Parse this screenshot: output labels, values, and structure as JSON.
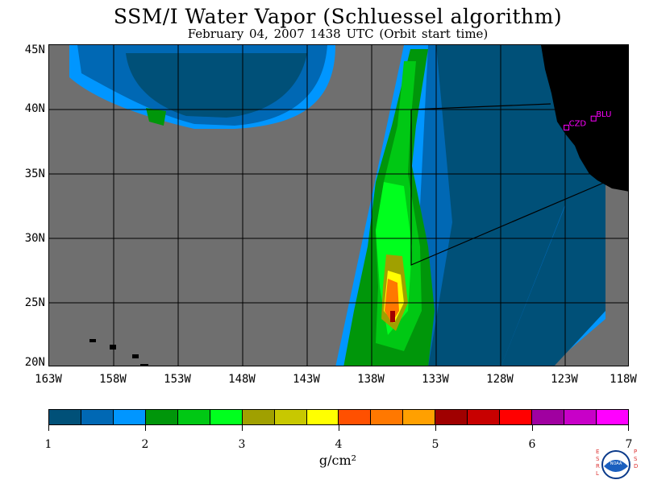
{
  "title": "SSM/I Water Vapor (Schluessel algorithm)",
  "subtitle": "February 04, 2007  1438 UTC  (Orbit start time)",
  "map": {
    "lat_labels": [
      "45N",
      "40N",
      "35N",
      "30N",
      "25N",
      "20N"
    ],
    "lon_labels": [
      "163W",
      "158W",
      "153W",
      "148W",
      "143W",
      "138W",
      "133W",
      "128W",
      "123W",
      "118W"
    ],
    "extent": {
      "lon_min": -163,
      "lon_max": -118,
      "lat_min": 20,
      "lat_max": 45
    },
    "stations": [
      {
        "name": "CZD",
        "lon": -122.9,
        "lat": 38.6
      },
      {
        "name": "BLU",
        "lon": -120.8,
        "lat": 39.3
      }
    ],
    "colors": {
      "no_data": "#6f6f6f",
      "land": "#000000",
      "station": "#ff00ff"
    }
  },
  "colorbar": {
    "colors": [
      "#005078",
      "#0068b4",
      "#0096ff",
      "#00960a",
      "#00c814",
      "#00ff1e",
      "#a0a000",
      "#c8c800",
      "#ffff00",
      "#ff5000",
      "#ff7800",
      "#ffa000",
      "#a00000",
      "#c80000",
      "#ff0000",
      "#a000a0",
      "#c800c8",
      "#ff00ff"
    ],
    "labels": [
      "1",
      "2",
      "3",
      "4",
      "5",
      "6",
      "7"
    ],
    "units": "g/cm²"
  },
  "logo": {
    "name": "noaa-logo",
    "text": "NOAA",
    "left_text": "ESRL",
    "right_text": "PSD"
  }
}
